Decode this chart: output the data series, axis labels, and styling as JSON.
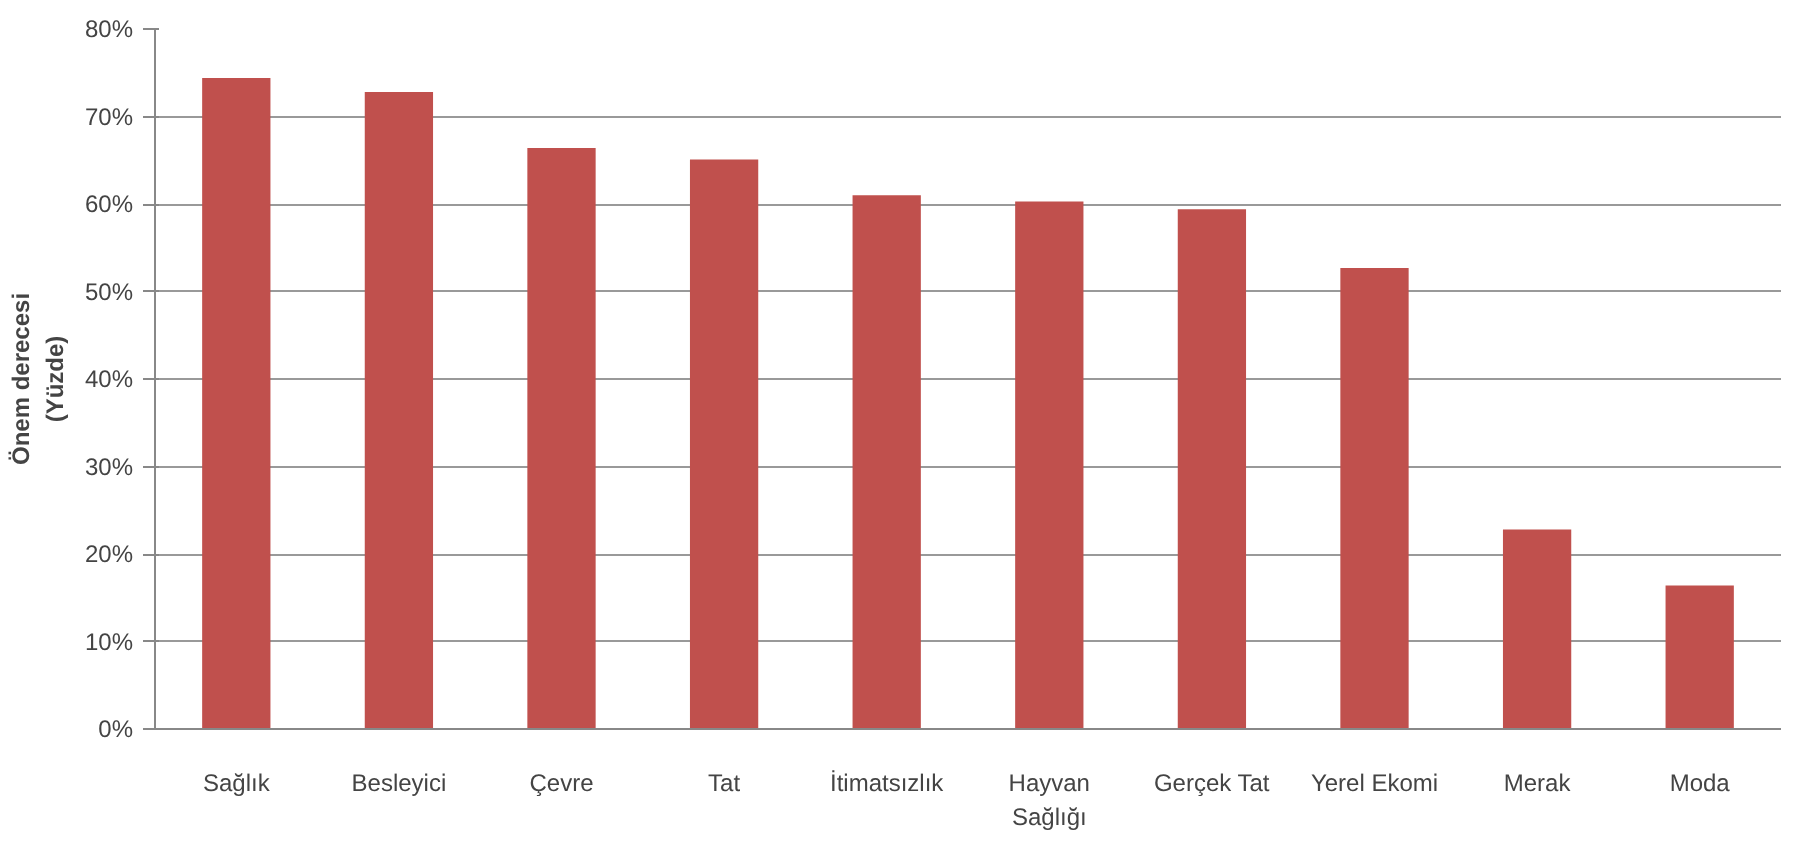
{
  "chart_data": {
    "type": "bar",
    "ylabel": "Önem derecesi\n(Yüzde)",
    "categories": [
      "Sağlık",
      "Besleyici",
      "Çevre",
      "Tat",
      "İtimatsızlık",
      "Hayvan Sağlığı",
      "Gerçek Tat",
      "Yerel Ekomi",
      "Merak",
      "Moda"
    ],
    "values": [
      74.4,
      72.8,
      66.4,
      65.1,
      61.0,
      60.3,
      59.4,
      52.7,
      22.8,
      16.4
    ],
    "color": "#c0504d",
    "ylim": [
      0,
      80
    ],
    "yticks": [
      {
        "value": 0,
        "label": "0%"
      },
      {
        "value": 10,
        "label": "10%"
      },
      {
        "value": 20,
        "label": "20%"
      },
      {
        "value": 30,
        "label": "30%"
      },
      {
        "value": 40,
        "label": "40%"
      },
      {
        "value": 50,
        "label": "50%"
      },
      {
        "value": 60,
        "label": "60%"
      },
      {
        "value": 70,
        "label": "70%"
      },
      {
        "value": 80,
        "label": "80%"
      }
    ],
    "grid": "y"
  }
}
